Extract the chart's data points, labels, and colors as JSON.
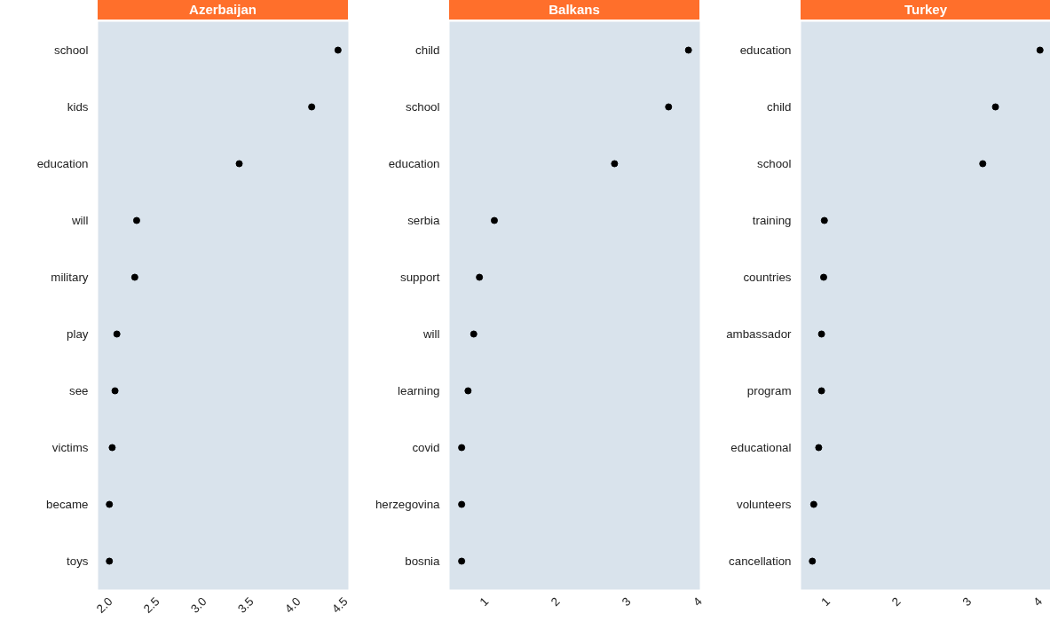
{
  "chart_data": [
    {
      "type": "scatter",
      "orientation": "horizontal",
      "title": "Azerbaijan",
      "categories": [
        "school",
        "kids",
        "education",
        "will",
        "military",
        "play",
        "see",
        "victims",
        "became",
        "toys"
      ],
      "values": [
        4.42,
        4.14,
        3.37,
        2.28,
        2.26,
        2.07,
        2.05,
        2.02,
        1.99,
        1.99
      ],
      "color": "#000000",
      "marker": "circle",
      "grid": false,
      "xlim": [
        1.87,
        4.53
      ],
      "xticks": [
        {
          "value": 2,
          "label": "2.0"
        },
        2.5,
        {
          "value": 3,
          "label": "3.0"
        },
        3.5,
        {
          "value": 4,
          "label": "4.0"
        },
        4.5
      ]
    },
    {
      "type": "scatter",
      "orientation": "horizontal",
      "title": "Balkans",
      "categories": [
        "child",
        "school",
        "education",
        "serbia",
        "support",
        "will",
        "learning",
        "covid",
        "herzegovina",
        "bosnia"
      ],
      "values": [
        3.84,
        3.56,
        2.8,
        1.11,
        0.9,
        0.82,
        0.74,
        0.65,
        0.65,
        0.65
      ],
      "color": "#000000",
      "marker": "circle",
      "grid": false,
      "xlim": [
        0.48,
        4.0
      ],
      "xticks": [
        1,
        2,
        3,
        4
      ]
    },
    {
      "type": "scatter",
      "orientation": "horizontal",
      "title": "Turkey",
      "categories": [
        "education",
        "child",
        "school",
        "training",
        "countries",
        "ambassador",
        "program",
        "educational",
        "volunteers",
        "cancellation"
      ],
      "values": [
        4.0,
        3.37,
        3.19,
        0.95,
        0.94,
        0.91,
        0.91,
        0.87,
        0.8,
        0.78
      ],
      "color": "#000000",
      "marker": "circle",
      "grid": false,
      "xlim": [
        0.62,
        4.16
      ],
      "xticks": [
        1,
        2,
        3,
        4
      ]
    }
  ]
}
